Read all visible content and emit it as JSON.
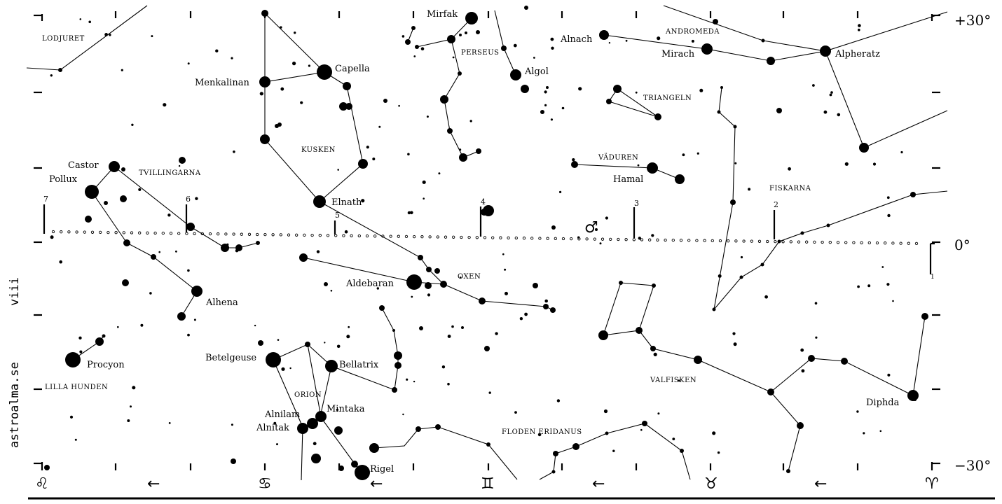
{
  "declination_labels": {
    "top": "+30°",
    "middle": "0°",
    "bottom": "−30°"
  },
  "side_labels": {
    "hour": "viii",
    "site": "astroalma.se"
  },
  "star_names": {
    "mirfak": "Mirfak",
    "capella": "Capella",
    "menkalinan": "Menkalinan",
    "elnath": "Elnath",
    "castor": "Castor",
    "pollux": "Pollux",
    "alhena": "Alhena",
    "procyon": "Procyon",
    "aldebaran": "Aldebaran",
    "algol": "Algol",
    "alnach": "Alnach",
    "mirach": "Mirach",
    "alpheratz": "Alpheratz",
    "hamal": "Hamal",
    "betelgeuse": "Betelgeuse",
    "bellatrix": "Bellatrix",
    "mintaka": "Mintaka",
    "alnilam": "Alnilam",
    "alnitak": "Alnitak",
    "rigel": "Rigel",
    "diphda": "Diphda"
  },
  "constellations": {
    "lodjuret": "LODJURET",
    "perseus": "PERSEUS",
    "andromeda": "ANDROMEDA",
    "triangeln": "TRIANGELN",
    "kusken": "KUSKEN",
    "tvillingarna": "TVILLINGARNA",
    "vaduren": "VÄDUREN",
    "fiskarna": "FISKARNA",
    "oxen": "OXEN",
    "lilla_hunden": "LILLA HUNDEN",
    "orion": "ORION",
    "valfisken": "VALFISKEN",
    "floden_eridanus": "FLODEN ERIDANUS"
  },
  "ecliptic_markers": [
    "7",
    "6",
    "5",
    "4",
    "3",
    "2",
    "1"
  ],
  "planet_symbol": "♂",
  "zodiac_symbols": [
    "♌",
    "♋",
    "♊",
    "♉",
    "♈"
  ],
  "arrow": "←"
}
